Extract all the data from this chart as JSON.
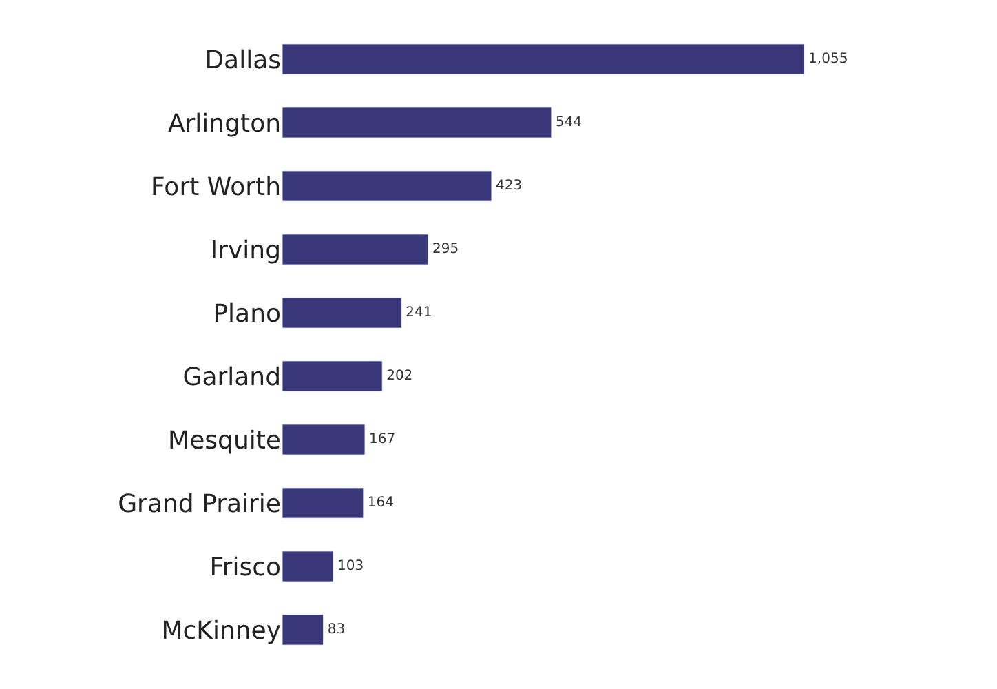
{
  "chart_data": {
    "type": "bar",
    "orientation": "horizontal",
    "categories": [
      "Dallas",
      "Arlington",
      "Fort Worth",
      "Irving",
      "Plano",
      "Garland",
      "Mesquite",
      "Grand Prairie",
      "Frisco",
      "McKinney"
    ],
    "values": [
      1055,
      544,
      423,
      295,
      241,
      202,
      167,
      164,
      103,
      83
    ],
    "value_labels": [
      "1,055",
      "544",
      "423",
      "295",
      "241",
      "202",
      "167",
      "164",
      "103",
      "83"
    ],
    "color": "#38377a"
  }
}
